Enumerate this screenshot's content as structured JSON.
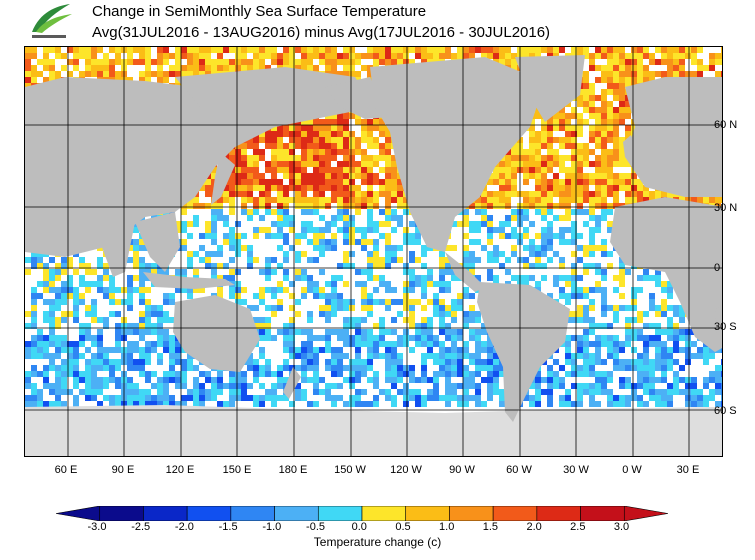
{
  "header": {
    "title_line1": "Change in SemiMonthly Sea Surface Temperature",
    "title_line2": "Avg(31JUL2016 - 13AUG2016) minus Avg(17JUL2016 - 30JUL2016)"
  },
  "map": {
    "lat_labels": [
      "60 N",
      "30 N",
      "0",
      "30 S",
      "60 S"
    ],
    "lon_labels": [
      "60 E",
      "90 E",
      "120 E",
      "150 E",
      "180 E",
      "150 W",
      "120 W",
      "90 W",
      "60 W",
      "30 W",
      "0 W",
      "30 E"
    ],
    "land_color": "#bdbdbd",
    "ice_color": "#dedede",
    "grid": "on"
  },
  "colorbar": {
    "ticks": [
      "-3.0",
      "-2.5",
      "-2.0",
      "-1.5",
      "-1.0",
      "-0.5",
      "0.0",
      "0.5",
      "1.0",
      "1.5",
      "2.0",
      "2.5",
      "3.0"
    ],
    "colors": [
      "#0b0b8c",
      "#0a27c8",
      "#1150f0",
      "#2f86f3",
      "#4cb0f5",
      "#40d8f5",
      "#ffffff",
      "#fde52a",
      "#fbbd16",
      "#f8911a",
      "#f25a1a",
      "#dd2a16",
      "#c4101a"
    ],
    "label": "Temperature change  (c)"
  }
}
